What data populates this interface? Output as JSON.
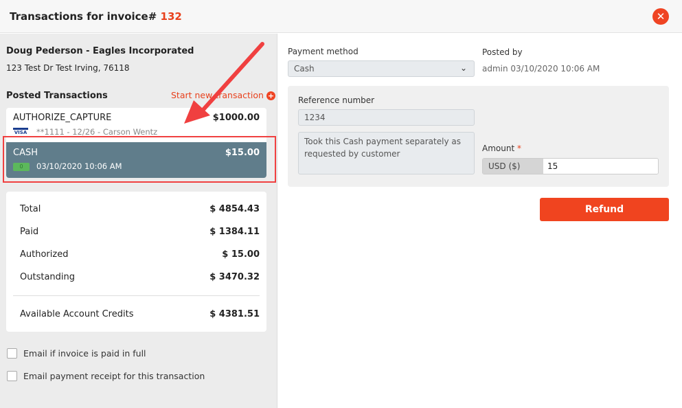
{
  "header": {
    "title": "Transactions for invoice#",
    "invoice_number": "132",
    "close_icon": "close-circle-icon"
  },
  "customer": {
    "name": "Doug Pederson - Eagles Incorporated",
    "address": "123 Test Dr Test Irving, 76118"
  },
  "transactions": {
    "heading": "Posted Transactions",
    "start_new": "Start new transaction",
    "items": [
      {
        "type": "AUTHORIZE_CAPTURE",
        "amount": "$1000.00",
        "detail": "**1111 - 12/26 - Carson Wentz",
        "icon": "visa-card-icon"
      },
      {
        "type": "CASH",
        "amount": "$15.00",
        "detail": "03/10/2020 10:06 AM",
        "icon": "cash-icon",
        "selected": true
      }
    ]
  },
  "summary": [
    {
      "label": "Total",
      "value": "$ 4854.43"
    },
    {
      "label": "Paid",
      "value": "$ 1384.11"
    },
    {
      "label": "Authorized",
      "value": "$ 15.00"
    },
    {
      "label": "Outstanding",
      "value": "$ 3470.32"
    }
  ],
  "credits": {
    "label": "Available Account Credits",
    "value": "$ 4381.51"
  },
  "options": [
    {
      "label": "Email if invoice is paid in full",
      "checked": false
    },
    {
      "label": "Email payment receipt for this transaction",
      "checked": false
    }
  ],
  "form": {
    "payment_method_label": "Payment method",
    "payment_method_value": "Cash",
    "posted_by_label": "Posted by",
    "posted_by_value": "admin 03/10/2020 10:06 AM",
    "reference_label": "Reference number",
    "reference_value": "1234",
    "notes_value": "Took this Cash payment separately as requested by customer",
    "amount_label": "Amount",
    "required_mark": "*",
    "currency": "USD ($)",
    "amount_value": "15",
    "refund_label": "Refund"
  },
  "colors": {
    "accent": "#ef4423",
    "selected_row": "#607d8b",
    "annotation": "#f04040"
  }
}
